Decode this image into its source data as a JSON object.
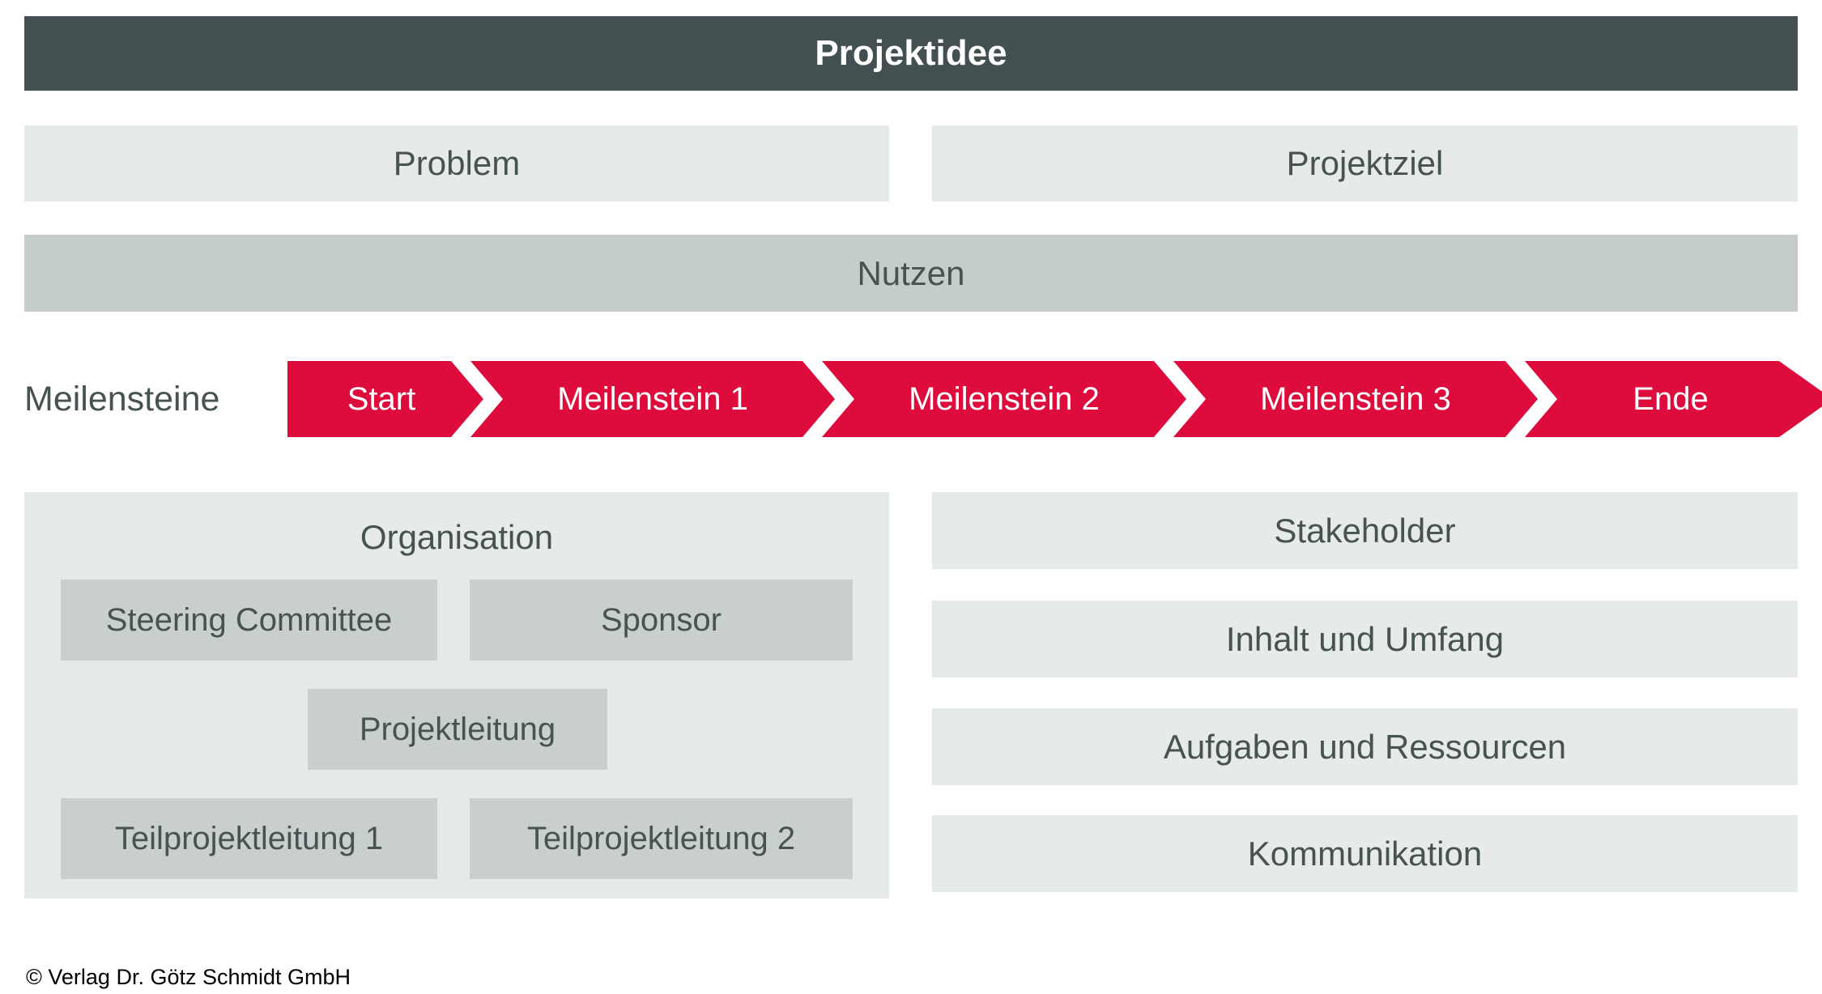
{
  "colors": {
    "header_bg": "#434F50",
    "light_box_bg": "#E6EAEA",
    "nutzen_bg": "#C5CCCC",
    "org_inner_bg": "#C9CFCF",
    "accent_red": "#DE0B3D",
    "label_text": "#475351",
    "header_text": "#FFFFFF"
  },
  "header": {
    "title": "Projektidee"
  },
  "top_row": {
    "problem": "Problem",
    "projektziel": "Projektziel"
  },
  "nutzen": {
    "label": "Nutzen"
  },
  "milestones": {
    "label": "Meilensteine",
    "steps": [
      "Start",
      "Meilenstein 1",
      "Meilenstein 2",
      "Meilenstein 3",
      "Ende"
    ]
  },
  "organisation": {
    "title": "Organisation",
    "boxes": {
      "steering": "Steering Committee",
      "sponsor": "Sponsor",
      "projektleitung": "Projektleitung",
      "teilprojektleitung1": "Teilprojektleitung 1",
      "teilprojektleitung2": "Teilprojektleitung 2"
    }
  },
  "right_column": {
    "items": [
      "Stakeholder",
      "Inhalt und Umfang",
      "Aufgaben und Ressourcen",
      "Kommunikation"
    ]
  },
  "footer": {
    "copyright": "© Verlag Dr. Götz Schmidt GmbH"
  }
}
